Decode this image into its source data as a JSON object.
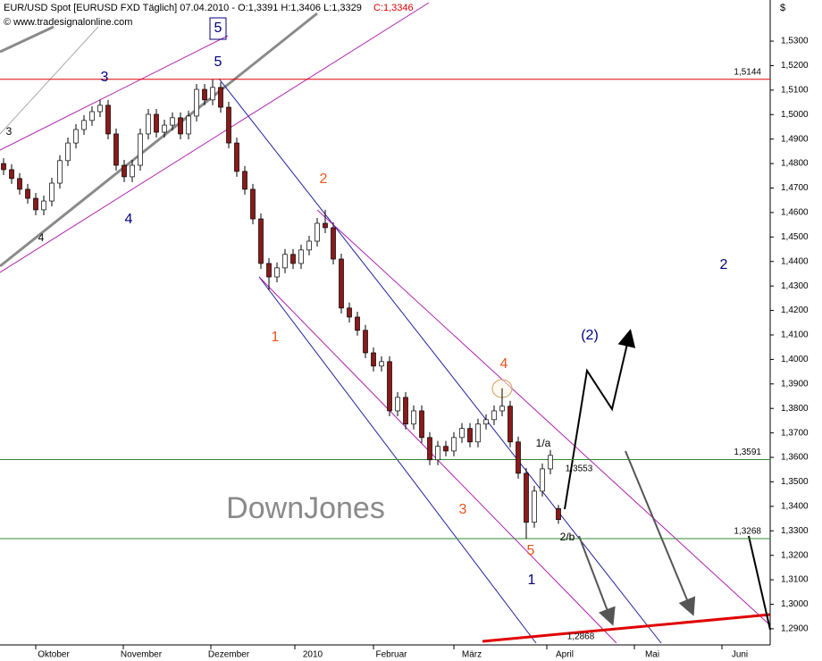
{
  "chart_data": {
    "type": "candlestick",
    "title": "EUR/USD Spot [EURUSD FXD  Täglich] 07.04.2010 - O:1,3391 H:1,3406 L:1,3329",
    "title_close": "C:1,3346",
    "copyright": "© www.tradesignalonline.com",
    "y_axis_label": "$",
    "xlabels": [
      "Oktober",
      "November",
      "Dezember",
      "2010",
      "Februar",
      "März",
      "April",
      "Mai",
      "Juni"
    ],
    "up_color": "#ffffff",
    "down_color": "#8b1a1a",
    "ylim": [
      1.2834,
      1.5468
    ],
    "yticks": [
      {
        "value": 1.29,
        "label": "1,2900"
      },
      {
        "value": 1.3,
        "label": "1,3000"
      },
      {
        "value": 1.31,
        "label": "1,3100"
      },
      {
        "value": 1.32,
        "label": "1,3200"
      },
      {
        "value": 1.33,
        "label": "1,3300"
      },
      {
        "value": 1.34,
        "label": "1,3400"
      },
      {
        "value": 1.35,
        "label": "1,3500"
      },
      {
        "value": 1.36,
        "label": "1,3600"
      },
      {
        "value": 1.37,
        "label": "1,3700"
      },
      {
        "value": 1.38,
        "label": "1,3800"
      },
      {
        "value": 1.39,
        "label": "1,3900"
      },
      {
        "value": 1.4,
        "label": "1,4000"
      },
      {
        "value": 1.41,
        "label": "1,4100"
      },
      {
        "value": 1.42,
        "label": "1,4200"
      },
      {
        "value": 1.43,
        "label": "1,4300"
      },
      {
        "value": 1.44,
        "label": "1,4400"
      },
      {
        "value": 1.45,
        "label": "1,4500"
      },
      {
        "value": 1.46,
        "label": "1,4600"
      },
      {
        "value": 1.47,
        "label": "1,4700"
      },
      {
        "value": 1.48,
        "label": "1,4800"
      },
      {
        "value": 1.49,
        "label": "1,4900"
      },
      {
        "value": 1.5,
        "label": "1,5000"
      },
      {
        "value": 1.51,
        "label": "1,5100"
      },
      {
        "value": 1.52,
        "label": "1,5200"
      },
      {
        "value": 1.53,
        "label": "1,5300"
      }
    ],
    "candles": {
      "open": [
        1.48,
        1.4775,
        1.4739,
        1.4695,
        1.4658,
        1.4611,
        1.4647,
        1.472,
        1.4812,
        1.4884,
        1.4939,
        1.4976,
        1.5012,
        1.5038,
        1.4921,
        1.4793,
        1.4746,
        1.4793,
        1.4921,
        1.5001,
        1.4928,
        1.4957,
        1.4987,
        1.4921,
        1.4994,
        1.5103,
        1.506,
        1.5111,
        1.503,
        1.4884,
        1.4768,
        1.4695,
        1.4574,
        1.4392,
        1.4337,
        1.4374,
        1.4429,
        1.4392,
        1.4447,
        1.4483,
        1.4556,
        1.4538,
        1.441,
        1.421,
        1.4173,
        1.4119,
        1.4027,
        1.3973,
        1.3991,
        1.379,
        1.3845,
        1.3736,
        1.379,
        1.3681,
        1.359,
        1.3645,
        1.3626,
        1.3681,
        1.3718,
        1.3663,
        1.3736,
        1.3754,
        1.379,
        1.3809,
        1.3663,
        1.3535,
        1.3335,
        1.3462,
        1.3553,
        1.3391
      ],
      "high": [
        1.4822,
        1.4797,
        1.4761,
        1.4717,
        1.468,
        1.4669,
        1.4742,
        1.4834,
        1.4906,
        1.4961,
        1.4998,
        1.5034,
        1.506,
        1.506,
        1.4943,
        1.4815,
        1.4815,
        1.4943,
        1.5023,
        1.5023,
        1.4979,
        1.5009,
        1.5009,
        1.5016,
        1.5125,
        1.5125,
        1.5144,
        1.5133,
        1.5052,
        1.4906,
        1.479,
        1.4717,
        1.4596,
        1.4414,
        1.4396,
        1.4451,
        1.4451,
        1.4469,
        1.4505,
        1.4578,
        1.4611,
        1.456,
        1.4432,
        1.4232,
        1.4195,
        1.4141,
        1.4049,
        1.4013,
        1.4013,
        1.3867,
        1.3867,
        1.3812,
        1.3812,
        1.3703,
        1.3667,
        1.3667,
        1.3703,
        1.374,
        1.374,
        1.3758,
        1.3776,
        1.3812,
        1.3882,
        1.3831,
        1.3685,
        1.3557,
        1.3484,
        1.3575,
        1.363,
        1.3406
      ],
      "low": [
        1.4753,
        1.4717,
        1.4673,
        1.4636,
        1.4589,
        1.4589,
        1.4625,
        1.4698,
        1.479,
        1.4862,
        1.4917,
        1.4954,
        1.499,
        1.4899,
        1.4771,
        1.4724,
        1.4724,
        1.4771,
        1.4899,
        1.4906,
        1.4906,
        1.4935,
        1.4899,
        1.4899,
        1.4972,
        1.5038,
        1.5038,
        1.5008,
        1.4862,
        1.4746,
        1.4673,
        1.4552,
        1.437,
        1.4283,
        1.4315,
        1.4352,
        1.437,
        1.437,
        1.4425,
        1.4461,
        1.4516,
        1.4388,
        1.4188,
        1.4151,
        1.4097,
        1.4005,
        1.3951,
        1.3951,
        1.3768,
        1.3768,
        1.3714,
        1.3714,
        1.3659,
        1.3568,
        1.3568,
        1.3604,
        1.3604,
        1.3659,
        1.3641,
        1.3641,
        1.3714,
        1.3732,
        1.3768,
        1.3641,
        1.3513,
        1.3268,
        1.3313,
        1.344,
        1.3531,
        1.3329
      ],
      "close": [
        1.4775,
        1.4739,
        1.4695,
        1.4658,
        1.4611,
        1.4647,
        1.472,
        1.4812,
        1.4884,
        1.4939,
        1.4976,
        1.5012,
        1.5038,
        1.4921,
        1.4793,
        1.4746,
        1.4793,
        1.4921,
        1.5001,
        1.4928,
        1.4957,
        1.4987,
        1.4921,
        1.4994,
        1.5103,
        1.506,
        1.5111,
        1.503,
        1.4884,
        1.4768,
        1.4695,
        1.4574,
        1.4392,
        1.4337,
        1.4374,
        1.4429,
        1.4392,
        1.4447,
        1.4483,
        1.4556,
        1.4538,
        1.441,
        1.421,
        1.4173,
        1.4119,
        1.4027,
        1.3973,
        1.3991,
        1.379,
        1.3845,
        1.3736,
        1.379,
        1.3681,
        1.359,
        1.3645,
        1.3626,
        1.3681,
        1.3718,
        1.3663,
        1.3736,
        1.3754,
        1.379,
        1.3809,
        1.3663,
        1.3535,
        1.3335,
        1.3462,
        1.3553,
        1.3608,
        1.3346
      ]
    },
    "levels": [
      {
        "value": 1.5144,
        "label": "1,5144",
        "color": "#e00000"
      },
      {
        "value": 1.3591,
        "label": "1,3591",
        "color": "#2e8b2e"
      },
      {
        "value": 1.3268,
        "label": "1,3268",
        "color": "#2e8b2e"
      }
    ],
    "price_labels": [
      {
        "value": 1.3553,
        "label": "1,3553",
        "color": "#c0408a"
      },
      {
        "value": 1.2868,
        "label": "1,2868",
        "color": "#e00000"
      }
    ],
    "annotations": [
      {
        "text": "5",
        "color": "#000080"
      },
      {
        "text": "5",
        "color": "#000080"
      },
      {
        "text": "3",
        "color": "#000080"
      },
      {
        "text": "3",
        "color": "#000000"
      },
      {
        "text": "4",
        "color": "#000080"
      },
      {
        "text": "4",
        "color": "#000000"
      },
      {
        "text": "2",
        "color": "#e8541e"
      },
      {
        "text": "1",
        "color": "#e8541e"
      },
      {
        "text": "3",
        "color": "#e8541e"
      },
      {
        "text": "4",
        "color": "#e8541e"
      },
      {
        "text": "5",
        "color": "#e8541e"
      },
      {
        "text": "1",
        "color": "#000080"
      },
      {
        "text": "2",
        "color": "#000080"
      },
      {
        "text": "(2)",
        "color": "#000080"
      },
      {
        "text": "1/a",
        "color": "#000000"
      },
      {
        "text": "2/b",
        "color": "#000000"
      },
      {
        "text": "DownJones",
        "color": "#8a8a8a"
      }
    ]
  }
}
